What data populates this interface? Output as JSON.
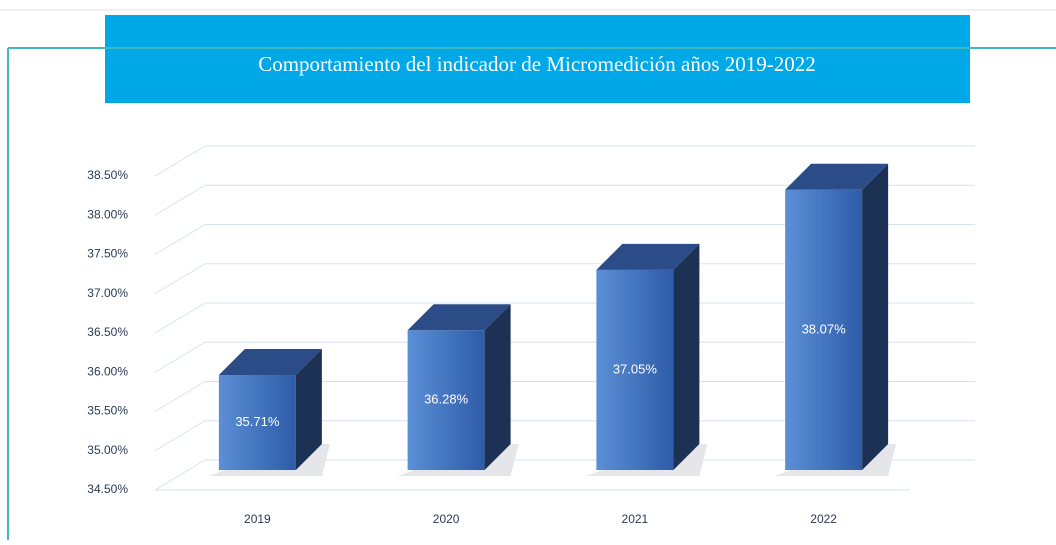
{
  "chart_data": {
    "type": "bar3d",
    "title": "Comportamiento del indicador de Micromedición años 2019-2022",
    "categories": [
      "2019",
      "2020",
      "2021",
      "2022"
    ],
    "values": [
      35.71,
      36.28,
      37.05,
      38.07
    ],
    "value_labels": [
      "35.71%",
      "36.28%",
      "37.05%",
      "38.07%"
    ],
    "color": "#3a6cb8",
    "ylim": [
      34.5,
      38.5
    ],
    "yticks": [
      {
        "value": 34.5,
        "label": "34.50%"
      },
      {
        "value": 35,
        "label": "35.00%"
      },
      {
        "value": 35.5,
        "label": "35.50%"
      },
      {
        "value": 36,
        "label": "36.00%"
      },
      {
        "value": 36.5,
        "label": "36.50%"
      },
      {
        "value": 37,
        "label": "37.00%"
      },
      {
        "value": 37.5,
        "label": "37.50%"
      },
      {
        "value": 38,
        "label": "38.00%"
      },
      {
        "value": 38.5,
        "label": "38.50%"
      }
    ],
    "grid": true
  }
}
